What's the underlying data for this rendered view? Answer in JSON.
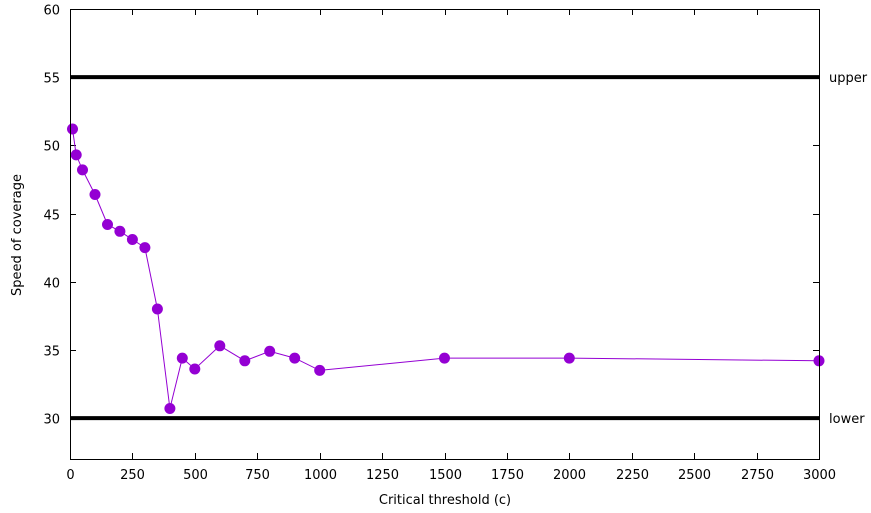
{
  "chart_data": {
    "type": "line",
    "title": "",
    "xlabel": "Critical threshold (c)",
    "ylabel": "Speed of coverage",
    "xlim": [
      0,
      3000
    ],
    "ylim": [
      27,
      60
    ],
    "x_ticks": [
      0,
      250,
      500,
      750,
      1000,
      1250,
      1500,
      1750,
      2000,
      2250,
      2500,
      2750,
      3000
    ],
    "y_ticks": [
      30,
      35,
      40,
      45,
      50,
      55,
      60
    ],
    "grid": false,
    "legend": "none",
    "series": [
      {
        "color": "#9400d3",
        "marker": "circle",
        "x": [
          10,
          25,
          50,
          100,
          150,
          200,
          250,
          300,
          350,
          400,
          450,
          500,
          600,
          700,
          800,
          900,
          1000,
          1500,
          2000,
          3000
        ],
        "y": [
          51.2,
          49.3,
          48.2,
          46.4,
          44.2,
          43.7,
          43.1,
          42.5,
          38.0,
          30.7,
          34.4,
          33.6,
          35.3,
          34.2,
          34.9,
          34.4,
          33.5,
          34.4,
          34.4,
          34.2
        ]
      }
    ],
    "reference_lines": [
      {
        "label": "upper",
        "y": 55,
        "color": "#000000"
      },
      {
        "label": "lower",
        "y": 30,
        "color": "#000000"
      }
    ]
  }
}
